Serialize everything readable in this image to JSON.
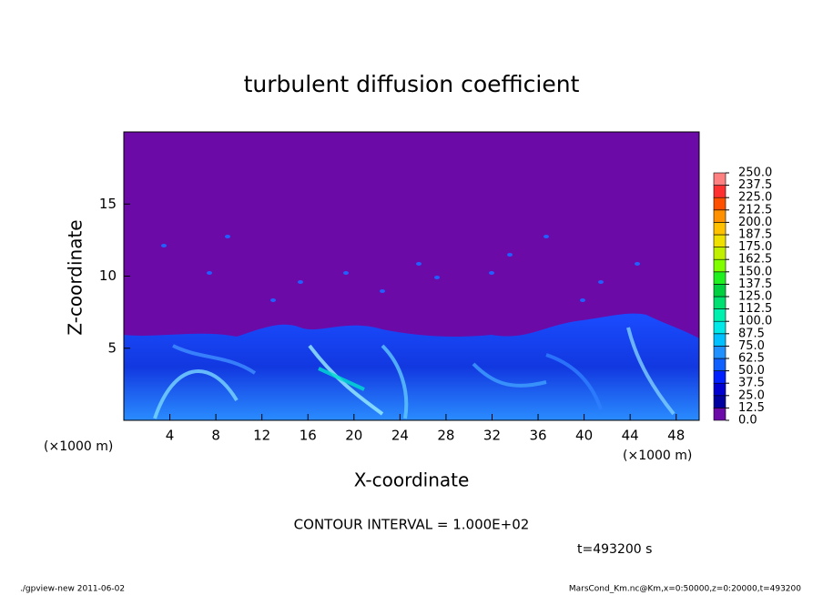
{
  "chart_data": {
    "type": "contour",
    "title": "turbulent diffusion coefficient",
    "x_label": "X-coordinate",
    "y_label": "Z-coordinate",
    "x_unit": "(×1000 m)",
    "y_unit": "(×1000 m)",
    "xlim": [
      0,
      50
    ],
    "xticks": [
      4,
      8,
      12,
      16,
      20,
      24,
      28,
      32,
      36,
      40,
      44,
      48
    ],
    "ylim": [
      0,
      20
    ],
    "yticks": [
      5,
      10,
      15
    ],
    "background_color": "#6c0aa8",
    "colorbar": {
      "levels": [
        {
          "value": 0,
          "label": "0.0"
        },
        {
          "value": 12.5,
          "label": "12.5"
        },
        {
          "value": 25,
          "label": "25.0"
        },
        {
          "value": 37.5,
          "label": "37.5"
        },
        {
          "value": 50,
          "label": "50.0"
        },
        {
          "value": 62.5,
          "label": "62.5"
        },
        {
          "value": 75,
          "label": "75.0"
        },
        {
          "value": 87.5,
          "label": "87.5"
        },
        {
          "value": 100,
          "label": "100.0"
        },
        {
          "value": 112.5,
          "label": "112.5"
        },
        {
          "value": 125,
          "label": "125.0"
        },
        {
          "value": 137.5,
          "label": "137.5"
        },
        {
          "value": 150,
          "label": "150.0"
        },
        {
          "value": 162.5,
          "label": "162.5"
        },
        {
          "value": 175,
          "label": "175.0"
        },
        {
          "value": 187.5,
          "label": "187.5"
        },
        {
          "value": 200,
          "label": "200.0"
        },
        {
          "value": 212.5,
          "label": "212.5"
        },
        {
          "value": 225,
          "label": "225.0"
        },
        {
          "value": 237.5,
          "label": "237.5"
        },
        {
          "value": 250,
          "label": "250.0"
        }
      ],
      "colors": [
        "#6c0aa8",
        "#0000a0",
        "#0000d0",
        "#0020ff",
        "#1060ff",
        "#2090ff",
        "#00c0ff",
        "#00e8e8",
        "#00f0b0",
        "#00e070",
        "#00d040",
        "#20f020",
        "#80ff00",
        "#c0f000",
        "#f0e000",
        "#ffc000",
        "#ff9000",
        "#ff5000",
        "#ff3030",
        "#ff8080"
      ]
    },
    "contour_interval": "CONTOUR INTERVAL = 1.000E+02",
    "time_label": "t=493200 s",
    "footer_left": "./gpview-new   2011-06-02",
    "footer_right": "MarsCond_Km.nc@Km,x=0:50000,z=0:20000,t=493200"
  }
}
